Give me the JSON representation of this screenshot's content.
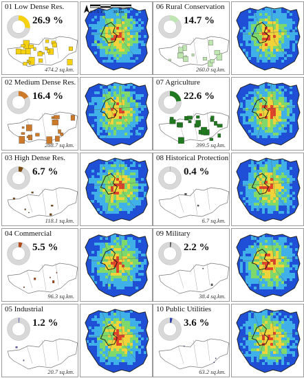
{
  "figure": {
    "scale_bar": {
      "ticks": "0  7.5 15",
      "max_label": "30 km"
    },
    "colors": {
      "heat_low": "#1f4fd6",
      "heat_mid_low": "#3fb0e8",
      "heat_mid": "#7fd86a",
      "heat_high": "#f0d23a",
      "heat_peak": "#e0452a",
      "boundary": "#222222"
    }
  },
  "panels": [
    {
      "id": "01",
      "title": "01 Low Dense Res.",
      "percent_text": "26.9 %",
      "percent": 26.9,
      "area_text": "474.2 sq.km.",
      "color": "#f5d10f"
    },
    {
      "id": "02",
      "title": "02 Medium Dense Res.",
      "percent_text": "16.4 %",
      "percent": 16.4,
      "area_text": "288.7 sq.km.",
      "color": "#cc7a2a"
    },
    {
      "id": "03",
      "title": "03 High Dense Res.",
      "percent_text": "6.7 %",
      "percent": 6.7,
      "area_text": "118.1 sq.km.",
      "color": "#7a4a12"
    },
    {
      "id": "04",
      "title": "04 Commercial",
      "percent_text": "5.5 %",
      "percent": 5.5,
      "area_text": "96.3 sq.km.",
      "color": "#b04a1a"
    },
    {
      "id": "05",
      "title": "05 Industrial",
      "percent_text": "1.2 %",
      "percent": 1.2,
      "area_text": "20.7 sq.km.",
      "color": "#5a5ab0"
    },
    {
      "id": "06",
      "title": "06 Rural Conservation",
      "percent_text": "14.7 %",
      "percent": 14.7,
      "area_text": "260.0 sq.km.",
      "color": "#bfe6b0"
    },
    {
      "id": "07",
      "title": "07 Agriculture",
      "percent_text": "22.6 %",
      "percent": 22.6,
      "area_text": "399.5 sq.km.",
      "color": "#1f7a1f"
    },
    {
      "id": "08",
      "title": "08 Historical Protection",
      "percent_text": "0.4 %",
      "percent": 0.4,
      "area_text": "6.7 sq.km.",
      "color": "#555555"
    },
    {
      "id": "09",
      "title": "09 Military",
      "percent_text": "2.2 %",
      "percent": 2.2,
      "area_text": "38.4 sq.km.",
      "color": "#555555"
    },
    {
      "id": "10",
      "title": "10 Public Utilities",
      "percent_text": "3.6 %",
      "percent": 3.6,
      "area_text": "63.2 sq.km.",
      "color": "#2a3fa8"
    }
  ]
}
